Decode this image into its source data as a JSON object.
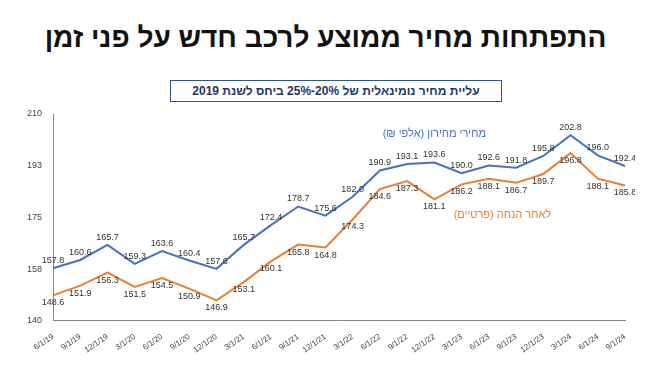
{
  "chart_data": {
    "type": "line",
    "title": "התפתחות מחיר ממוצע לרכב חדש על פני זמן",
    "subtitle": "עליית מחיר נומינאלית של 20%-25% ביחס לשנת 2019",
    "categories": [
      "6/1/19",
      "9/1/19",
      "12/1/19",
      "3/1/20",
      "6/1/20",
      "9/1/20",
      "12/1/20",
      "3/1/21",
      "6/1/21",
      "9/1/21",
      "12/1/21",
      "3/1/22",
      "6/1/22",
      "9/1/22",
      "12/1/22",
      "3/1/23",
      "6/1/23",
      "9/1/23",
      "12/1/23",
      "3/1/24",
      "6/1/24",
      "9/1/24"
    ],
    "series": [
      {
        "name": "מחירי מחירון (אלפי ₪)",
        "color": "#4472c4",
        "values": [
          157.8,
          160.6,
          165.7,
          159.3,
          163.6,
          160.4,
          157.6,
          165.7,
          172.4,
          178.7,
          175.6,
          182.0,
          190.9,
          193.1,
          193.6,
          190.0,
          192.6,
          191.8,
          195.8,
          202.8,
          196.0,
          192.4
        ],
        "value_labels": [
          "157.8",
          "160.6",
          "165.7",
          "159.3",
          "163.6",
          "160.4",
          "157.6",
          "165.7",
          "172.4",
          "178.7",
          "175.6",
          "182.0",
          "190.9",
          "193.1",
          "193.6",
          "190.0",
          "192.6",
          "191.8",
          "195.8",
          "202.8",
          "196.0",
          "192.4"
        ]
      },
      {
        "name": "לאחר הנחה (פרטיים)",
        "color": "#ed7d31",
        "values": [
          148.6,
          151.9,
          156.3,
          151.5,
          154.5,
          150.9,
          146.9,
          153.1,
          160.1,
          165.8,
          164.8,
          174.3,
          184.6,
          187.3,
          181.1,
          186.2,
          188.1,
          186.7,
          189.7,
          196.8,
          188.1,
          185.8
        ],
        "value_labels": [
          "148.6",
          "151.9",
          "156.3",
          "151.5",
          "154.5",
          "150.9",
          "146.9",
          "153.1",
          "160.1",
          "165.8",
          "164.8",
          "174.3",
          "184.6",
          "187.3",
          "181.1",
          "186.2",
          "188.1",
          "186.7",
          "189.7",
          "196.8",
          "188.1",
          "185.8"
        ]
      }
    ],
    "ylim": [
      140,
      210
    ],
    "yticks": [
      140,
      {
        "value": 157.5,
        "label": "158"
      },
      175,
      {
        "value": 192.5,
        "label": "193"
      },
      210
    ],
    "grid": false,
    "data_labels": true
  }
}
